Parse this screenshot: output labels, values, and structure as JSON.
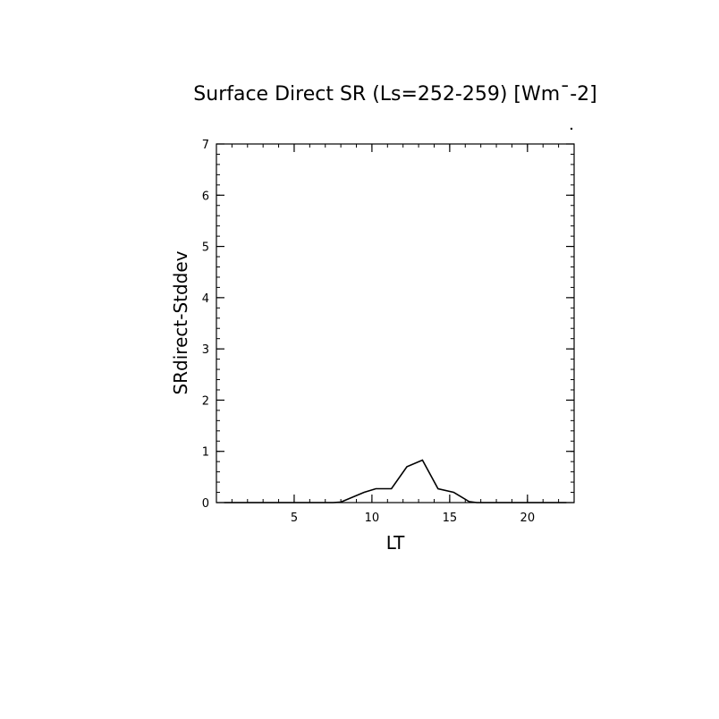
{
  "chart_data": {
    "type": "line",
    "title": "Surface Direct SR (Ls=252-259) [Wm¯-2]",
    "xlabel": "LT",
    "ylabel": "SRdirect-Stddev",
    "xlim": [
      0,
      23
    ],
    "ylim": [
      0,
      7
    ],
    "x_ticks": [
      5,
      10,
      15,
      20
    ],
    "y_ticks": [
      0,
      1,
      2,
      3,
      4,
      5,
      6,
      7
    ],
    "grid": false,
    "series": [
      {
        "x": [
          0.5,
          1.5,
          2.5,
          3.5,
          4.5,
          5.5,
          6.5,
          7.5,
          8.0,
          9.5,
          10.25,
          11.25,
          12.25,
          13.25,
          14.25,
          15.25,
          16.25,
          16.75,
          17.5,
          18.5,
          19.5,
          20.5,
          21.5,
          22.5
        ],
        "y": [
          0,
          0,
          0,
          0,
          0,
          0,
          0,
          0,
          0.01,
          0.2,
          0.27,
          0.27,
          0.7,
          0.83,
          0.27,
          0.2,
          0.02,
          0,
          0,
          0,
          0,
          0,
          0,
          0
        ]
      }
    ]
  }
}
